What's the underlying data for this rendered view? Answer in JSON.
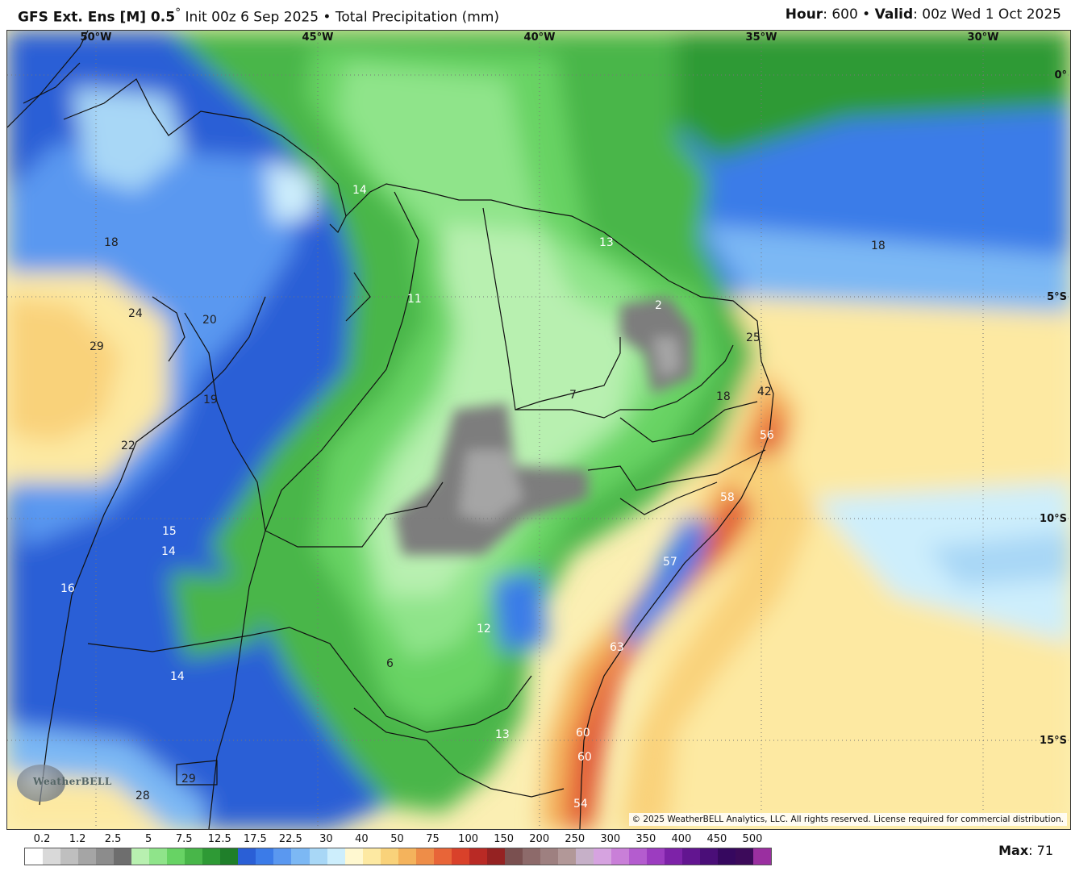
{
  "header": {
    "model_bold": "GFS Ext.  Ens [M] 0.5",
    "degree": "°",
    "init": " Init 00z 6 Sep 2025",
    "bullet": " • ",
    "field": "Total Precipitation (mm)",
    "hour_label": "Hour",
    "hour_value": ": 600",
    "valid_label": "Valid",
    "valid_value": ": 00z Wed 1 Oct 2025"
  },
  "map": {
    "lon_labels": [
      "50°W",
      "45°W",
      "40°W",
      "35°W",
      "30°W"
    ],
    "lat_labels": [
      "0°",
      "5°S",
      "10°S",
      "15°S"
    ],
    "values": [
      {
        "text": "14",
        "color": "#ffffff"
      },
      {
        "text": "18",
        "color": "#222222"
      },
      {
        "text": "24",
        "color": "#222222"
      },
      {
        "text": "20",
        "color": "#222222"
      },
      {
        "text": "29",
        "color": "#222222"
      },
      {
        "text": "19",
        "color": "#222222"
      },
      {
        "text": "22",
        "color": "#222222"
      },
      {
        "text": "15",
        "color": "#ffffff"
      },
      {
        "text": "14",
        "color": "#ffffff"
      },
      {
        "text": "16",
        "color": "#ffffff"
      },
      {
        "text": "14",
        "color": "#ffffff"
      },
      {
        "text": "29",
        "color": "#222222"
      },
      {
        "text": "28",
        "color": "#222222"
      },
      {
        "text": "11",
        "color": "#ffffff"
      },
      {
        "text": "13",
        "color": "#ffffff"
      },
      {
        "text": "2",
        "color": "#ffffff"
      },
      {
        "text": "7",
        "color": "#222222"
      },
      {
        "text": "18",
        "color": "#222222"
      },
      {
        "text": "25",
        "color": "#222222"
      },
      {
        "text": "42",
        "color": "#222222"
      },
      {
        "text": "56",
        "color": "#ffffff"
      },
      {
        "text": "58",
        "color": "#ffffff"
      },
      {
        "text": "57",
        "color": "#ffffff"
      },
      {
        "text": "63",
        "color": "#ffffff"
      },
      {
        "text": "60",
        "color": "#ffffff"
      },
      {
        "text": "60",
        "color": "#ffffff"
      },
      {
        "text": "54",
        "color": "#ffffff"
      },
      {
        "text": "12",
        "color": "#ffffff"
      },
      {
        "text": "6",
        "color": "#222222"
      },
      {
        "text": "13",
        "color": "#ffffff"
      },
      {
        "text": "18",
        "color": "#222222"
      }
    ],
    "copyright": "© 2025 WeatherBELL Analytics, LLC. All rights reserved. License required for commercial distribution.",
    "logo_text": "WeatherBELL"
  },
  "legend": {
    "ticks": [
      "0.2",
      "1.2",
      "2.5",
      "5",
      "7.5",
      "12.5",
      "17.5",
      "22.5",
      "30",
      "40",
      "50",
      "75",
      "100",
      "150",
      "200",
      "250",
      "300",
      "350",
      "400",
      "450",
      "500"
    ],
    "colors": [
      "#ffffff",
      "#d9d9d9",
      "#bfbfbf",
      "#a5a5a5",
      "#8c8c8c",
      "#6e6e6e",
      "#b8f0b0",
      "#8fe48a",
      "#67d364",
      "#48b649",
      "#2e9a35",
      "#1f7f2a",
      "#2a5fd6",
      "#3b7be8",
      "#5a98f0",
      "#7cb8f4",
      "#a8d7f6",
      "#cdeefc",
      "#fff8d0",
      "#fde9a2",
      "#f9d27a",
      "#f4b35c",
      "#ee8d48",
      "#e86538",
      "#d9412a",
      "#b92a25",
      "#952222",
      "#7a5050",
      "#8d6a6a",
      "#9e8080",
      "#b29898",
      "#c6b0c8",
      "#d6a3e0",
      "#c97fd8",
      "#b45ccf",
      "#9c3cc0",
      "#7d22a8",
      "#621590",
      "#4a0e78",
      "#36085f",
      "#3c0a5a",
      "#9a2fa0"
    ],
    "max_label": "Max",
    "max_value": ": 71"
  }
}
